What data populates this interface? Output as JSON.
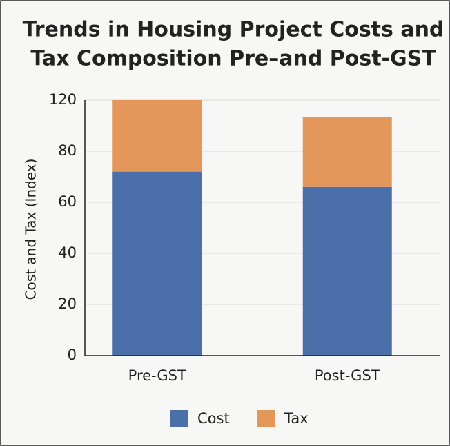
{
  "chart_data": {
    "type": "stacked_bar",
    "title": "Trends in Housing Project Costs and",
    "title_line2": "Tax Composition Pre–and Post-GST",
    "y_label": "Cost and Tax (Index)",
    "categories": [
      "Pre-GST",
      "Post-GST"
    ],
    "series": [
      {
        "name": "Cost",
        "color": "#4b6fa8",
        "values": [
          72,
          66
        ]
      },
      {
        "name": "Tax",
        "color": "#e3975b",
        "values": [
          48,
          41
        ]
      }
    ],
    "ylim": [
      0,
      120
    ],
    "yticks": [
      0,
      20,
      40,
      60,
      80,
      120
    ],
    "grid": true
  }
}
